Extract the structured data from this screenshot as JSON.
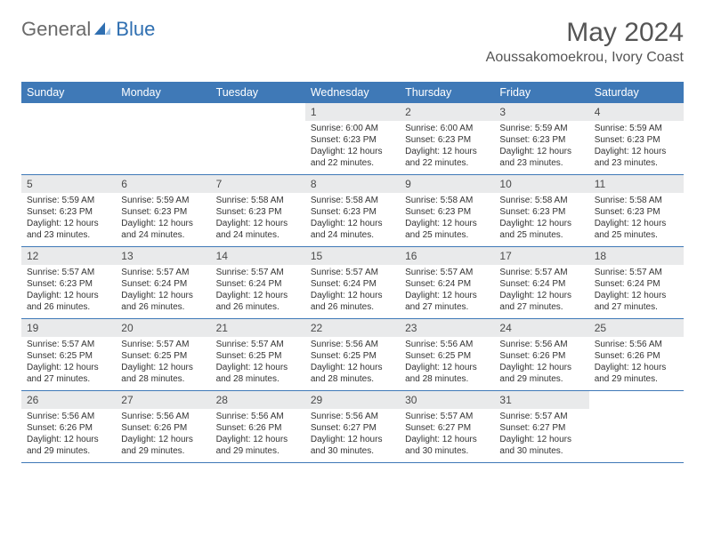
{
  "brand": {
    "word1": "General",
    "word2": "Blue",
    "word1_color": "#6a6a6a",
    "word2_color": "#2f6fb1"
  },
  "title": "May 2024",
  "location": "Aoussakomoekrou, Ivory Coast",
  "colors": {
    "header_row_bg": "#3f79b7",
    "daynum_bg": "#e9eaeb",
    "border": "#3f79b7"
  },
  "weekdays": [
    "Sunday",
    "Monday",
    "Tuesday",
    "Wednesday",
    "Thursday",
    "Friday",
    "Saturday"
  ],
  "weeks": [
    [
      {
        "empty": true
      },
      {
        "empty": true
      },
      {
        "empty": true
      },
      {
        "day": "1",
        "sunrise": "Sunrise: 6:00 AM",
        "sunset": "Sunset: 6:23 PM",
        "daylight": "Daylight: 12 hours and 22 minutes."
      },
      {
        "day": "2",
        "sunrise": "Sunrise: 6:00 AM",
        "sunset": "Sunset: 6:23 PM",
        "daylight": "Daylight: 12 hours and 22 minutes."
      },
      {
        "day": "3",
        "sunrise": "Sunrise: 5:59 AM",
        "sunset": "Sunset: 6:23 PM",
        "daylight": "Daylight: 12 hours and 23 minutes."
      },
      {
        "day": "4",
        "sunrise": "Sunrise: 5:59 AM",
        "sunset": "Sunset: 6:23 PM",
        "daylight": "Daylight: 12 hours and 23 minutes."
      }
    ],
    [
      {
        "day": "5",
        "sunrise": "Sunrise: 5:59 AM",
        "sunset": "Sunset: 6:23 PM",
        "daylight": "Daylight: 12 hours and 23 minutes."
      },
      {
        "day": "6",
        "sunrise": "Sunrise: 5:59 AM",
        "sunset": "Sunset: 6:23 PM",
        "daylight": "Daylight: 12 hours and 24 minutes."
      },
      {
        "day": "7",
        "sunrise": "Sunrise: 5:58 AM",
        "sunset": "Sunset: 6:23 PM",
        "daylight": "Daylight: 12 hours and 24 minutes."
      },
      {
        "day": "8",
        "sunrise": "Sunrise: 5:58 AM",
        "sunset": "Sunset: 6:23 PM",
        "daylight": "Daylight: 12 hours and 24 minutes."
      },
      {
        "day": "9",
        "sunrise": "Sunrise: 5:58 AM",
        "sunset": "Sunset: 6:23 PM",
        "daylight": "Daylight: 12 hours and 25 minutes."
      },
      {
        "day": "10",
        "sunrise": "Sunrise: 5:58 AM",
        "sunset": "Sunset: 6:23 PM",
        "daylight": "Daylight: 12 hours and 25 minutes."
      },
      {
        "day": "11",
        "sunrise": "Sunrise: 5:58 AM",
        "sunset": "Sunset: 6:23 PM",
        "daylight": "Daylight: 12 hours and 25 minutes."
      }
    ],
    [
      {
        "day": "12",
        "sunrise": "Sunrise: 5:57 AM",
        "sunset": "Sunset: 6:23 PM",
        "daylight": "Daylight: 12 hours and 26 minutes."
      },
      {
        "day": "13",
        "sunrise": "Sunrise: 5:57 AM",
        "sunset": "Sunset: 6:24 PM",
        "daylight": "Daylight: 12 hours and 26 minutes."
      },
      {
        "day": "14",
        "sunrise": "Sunrise: 5:57 AM",
        "sunset": "Sunset: 6:24 PM",
        "daylight": "Daylight: 12 hours and 26 minutes."
      },
      {
        "day": "15",
        "sunrise": "Sunrise: 5:57 AM",
        "sunset": "Sunset: 6:24 PM",
        "daylight": "Daylight: 12 hours and 26 minutes."
      },
      {
        "day": "16",
        "sunrise": "Sunrise: 5:57 AM",
        "sunset": "Sunset: 6:24 PM",
        "daylight": "Daylight: 12 hours and 27 minutes."
      },
      {
        "day": "17",
        "sunrise": "Sunrise: 5:57 AM",
        "sunset": "Sunset: 6:24 PM",
        "daylight": "Daylight: 12 hours and 27 minutes."
      },
      {
        "day": "18",
        "sunrise": "Sunrise: 5:57 AM",
        "sunset": "Sunset: 6:24 PM",
        "daylight": "Daylight: 12 hours and 27 minutes."
      }
    ],
    [
      {
        "day": "19",
        "sunrise": "Sunrise: 5:57 AM",
        "sunset": "Sunset: 6:25 PM",
        "daylight": "Daylight: 12 hours and 27 minutes."
      },
      {
        "day": "20",
        "sunrise": "Sunrise: 5:57 AM",
        "sunset": "Sunset: 6:25 PM",
        "daylight": "Daylight: 12 hours and 28 minutes."
      },
      {
        "day": "21",
        "sunrise": "Sunrise: 5:57 AM",
        "sunset": "Sunset: 6:25 PM",
        "daylight": "Daylight: 12 hours and 28 minutes."
      },
      {
        "day": "22",
        "sunrise": "Sunrise: 5:56 AM",
        "sunset": "Sunset: 6:25 PM",
        "daylight": "Daylight: 12 hours and 28 minutes."
      },
      {
        "day": "23",
        "sunrise": "Sunrise: 5:56 AM",
        "sunset": "Sunset: 6:25 PM",
        "daylight": "Daylight: 12 hours and 28 minutes."
      },
      {
        "day": "24",
        "sunrise": "Sunrise: 5:56 AM",
        "sunset": "Sunset: 6:26 PM",
        "daylight": "Daylight: 12 hours and 29 minutes."
      },
      {
        "day": "25",
        "sunrise": "Sunrise: 5:56 AM",
        "sunset": "Sunset: 6:26 PM",
        "daylight": "Daylight: 12 hours and 29 minutes."
      }
    ],
    [
      {
        "day": "26",
        "sunrise": "Sunrise: 5:56 AM",
        "sunset": "Sunset: 6:26 PM",
        "daylight": "Daylight: 12 hours and 29 minutes."
      },
      {
        "day": "27",
        "sunrise": "Sunrise: 5:56 AM",
        "sunset": "Sunset: 6:26 PM",
        "daylight": "Daylight: 12 hours and 29 minutes."
      },
      {
        "day": "28",
        "sunrise": "Sunrise: 5:56 AM",
        "sunset": "Sunset: 6:26 PM",
        "daylight": "Daylight: 12 hours and 29 minutes."
      },
      {
        "day": "29",
        "sunrise": "Sunrise: 5:56 AM",
        "sunset": "Sunset: 6:27 PM",
        "daylight": "Daylight: 12 hours and 30 minutes."
      },
      {
        "day": "30",
        "sunrise": "Sunrise: 5:57 AM",
        "sunset": "Sunset: 6:27 PM",
        "daylight": "Daylight: 12 hours and 30 minutes."
      },
      {
        "day": "31",
        "sunrise": "Sunrise: 5:57 AM",
        "sunset": "Sunset: 6:27 PM",
        "daylight": "Daylight: 12 hours and 30 minutes."
      },
      {
        "empty": true
      }
    ]
  ]
}
